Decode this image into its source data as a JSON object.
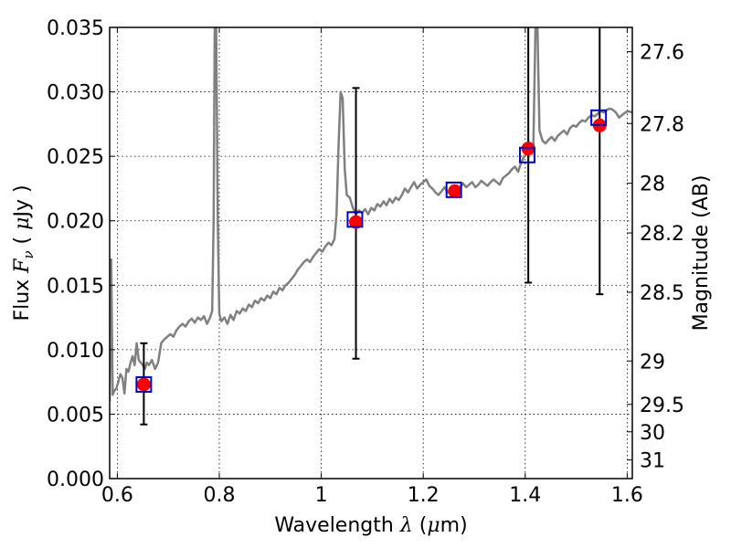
{
  "chart_data": {
    "type": "scatter",
    "xlabel": {
      "prefix": "Wavelength  ",
      "symbol": "λ",
      "mid": " (",
      "unit_symbol": "μ",
      "suffix": "m)"
    },
    "ylabel": {
      "prefix": "Flux  ",
      "symbol": "F",
      "sub": "ν",
      "mid": "  ( ",
      "unit_symbol": "μ",
      "suffix": "Jy )"
    },
    "y2label": "Magnitude (AB)",
    "xlim": [
      0.585,
      1.61
    ],
    "ylim": [
      0.0,
      0.035
    ],
    "x_ticks": [
      {
        "v": 0.6,
        "label": "0.6"
      },
      {
        "v": 0.8,
        "label": "0.8"
      },
      {
        "v": 1.0,
        "label": "1"
      },
      {
        "v": 1.2,
        "label": "1.2"
      },
      {
        "v": 1.4,
        "label": "1.4"
      },
      {
        "v": 1.6,
        "label": "1.6"
      }
    ],
    "y_ticks": [
      {
        "v": 0.0,
        "label": "0.000"
      },
      {
        "v": 0.005,
        "label": "0.005"
      },
      {
        "v": 0.01,
        "label": "0.010"
      },
      {
        "v": 0.015,
        "label": "0.015"
      },
      {
        "v": 0.02,
        "label": "0.020"
      },
      {
        "v": 0.025,
        "label": "0.025"
      },
      {
        "v": 0.03,
        "label": "0.030"
      },
      {
        "v": 0.035,
        "label": "0.035"
      }
    ],
    "magnitude_ticks": [
      {
        "mag": 27.6,
        "label": "27.6"
      },
      {
        "mag": 27.8,
        "label": "27.8"
      },
      {
        "mag": 28.0,
        "label": "28"
      },
      {
        "mag": 28.2,
        "label": "28.2"
      },
      {
        "mag": 28.5,
        "label": "28.5"
      },
      {
        "mag": 29.0,
        "label": "29"
      },
      {
        "mag": 29.5,
        "label": "29.5"
      },
      {
        "mag": 30.0,
        "label": "30"
      },
      {
        "mag": 31.0,
        "label": "31"
      }
    ],
    "grid": true,
    "series": [
      {
        "kind": "spectrum",
        "color": "#808080",
        "points": [
          [
            0.585,
            0.006
          ],
          [
            0.588,
            0.017
          ],
          [
            0.591,
            0.0065
          ],
          [
            0.594,
            0.0068
          ],
          [
            0.598,
            0.007
          ],
          [
            0.602,
            0.0075
          ],
          [
            0.606,
            0.0081
          ],
          [
            0.61,
            0.0078
          ],
          [
            0.614,
            0.0066
          ],
          [
            0.618,
            0.0085
          ],
          [
            0.622,
            0.0083
          ],
          [
            0.626,
            0.009
          ],
          [
            0.63,
            0.0095
          ],
          [
            0.634,
            0.0088
          ],
          [
            0.638,
            0.0105
          ],
          [
            0.642,
            0.0092
          ],
          [
            0.646,
            0.009
          ],
          [
            0.65,
            0.0088
          ],
          [
            0.654,
            0.0085
          ],
          [
            0.658,
            0.009
          ],
          [
            0.662,
            0.0088
          ],
          [
            0.668,
            0.0092
          ],
          [
            0.674,
            0.0085
          ],
          [
            0.68,
            0.009
          ],
          [
            0.686,
            0.0105
          ],
          [
            0.692,
            0.0108
          ],
          [
            0.698,
            0.011
          ],
          [
            0.704,
            0.0112
          ],
          [
            0.71,
            0.011
          ],
          [
            0.716,
            0.0115
          ],
          [
            0.722,
            0.0118
          ],
          [
            0.728,
            0.012
          ],
          [
            0.734,
            0.0118
          ],
          [
            0.74,
            0.0122
          ],
          [
            0.746,
            0.0124
          ],
          [
            0.752,
            0.0121
          ],
          [
            0.758,
            0.0125
          ],
          [
            0.764,
            0.0123
          ],
          [
            0.77,
            0.0126
          ],
          [
            0.776,
            0.012
          ],
          [
            0.782,
            0.0125
          ],
          [
            0.786,
            0.013
          ],
          [
            0.789,
            0.02
          ],
          [
            0.791,
            0.035
          ],
          [
            0.794,
            0.035
          ],
          [
            0.797,
            0.02
          ],
          [
            0.8,
            0.0128
          ],
          [
            0.804,
            0.0122
          ],
          [
            0.81,
            0.0125
          ],
          [
            0.816,
            0.012
          ],
          [
            0.822,
            0.0127
          ],
          [
            0.828,
            0.0123
          ],
          [
            0.834,
            0.013
          ],
          [
            0.84,
            0.0128
          ],
          [
            0.846,
            0.0132
          ],
          [
            0.852,
            0.013
          ],
          [
            0.858,
            0.0135
          ],
          [
            0.864,
            0.0133
          ],
          [
            0.87,
            0.0138
          ],
          [
            0.876,
            0.0136
          ],
          [
            0.882,
            0.014
          ],
          [
            0.888,
            0.0138
          ],
          [
            0.894,
            0.0142
          ],
          [
            0.9,
            0.014
          ],
          [
            0.906,
            0.0145
          ],
          [
            0.912,
            0.0143
          ],
          [
            0.918,
            0.0148
          ],
          [
            0.924,
            0.0146
          ],
          [
            0.93,
            0.015
          ],
          [
            0.936,
            0.0152
          ],
          [
            0.942,
            0.0155
          ],
          [
            0.948,
            0.0158
          ],
          [
            0.954,
            0.0162
          ],
          [
            0.96,
            0.0165
          ],
          [
            0.966,
            0.0168
          ],
          [
            0.972,
            0.017
          ],
          [
            0.978,
            0.0168
          ],
          [
            0.984,
            0.0172
          ],
          [
            0.99,
            0.0175
          ],
          [
            0.996,
            0.0178
          ],
          [
            1.002,
            0.0176
          ],
          [
            1.008,
            0.018
          ],
          [
            1.014,
            0.0183
          ],
          [
            1.02,
            0.0181
          ],
          [
            1.026,
            0.0186
          ],
          [
            1.03,
            0.0205
          ],
          [
            1.034,
            0.026
          ],
          [
            1.038,
            0.03
          ],
          [
            1.042,
            0.0295
          ],
          [
            1.046,
            0.024
          ],
          [
            1.05,
            0.022
          ],
          [
            1.056,
            0.0218
          ],
          [
            1.062,
            0.021
          ],
          [
            1.068,
            0.0205
          ],
          [
            1.074,
            0.0208
          ],
          [
            1.08,
            0.0206
          ],
          [
            1.086,
            0.0209
          ],
          [
            1.092,
            0.0205
          ],
          [
            1.098,
            0.021
          ],
          [
            1.104,
            0.0208
          ],
          [
            1.11,
            0.0213
          ],
          [
            1.116,
            0.0211
          ],
          [
            1.122,
            0.0215
          ],
          [
            1.128,
            0.0212
          ],
          [
            1.134,
            0.0217
          ],
          [
            1.14,
            0.0214
          ],
          [
            1.146,
            0.0218
          ],
          [
            1.152,
            0.0216
          ],
          [
            1.158,
            0.022
          ],
          [
            1.164,
            0.0225
          ],
          [
            1.17,
            0.0222
          ],
          [
            1.176,
            0.0226
          ],
          [
            1.182,
            0.023
          ],
          [
            1.188,
            0.0225
          ],
          [
            1.194,
            0.0228
          ],
          [
            1.2,
            0.023
          ],
          [
            1.206,
            0.0232
          ],
          [
            1.212,
            0.0227
          ],
          [
            1.218,
            0.0225
          ],
          [
            1.224,
            0.0222
          ],
          [
            1.23,
            0.022
          ],
          [
            1.236,
            0.0223
          ],
          [
            1.242,
            0.0226
          ],
          [
            1.248,
            0.0222
          ],
          [
            1.254,
            0.0225
          ],
          [
            1.26,
            0.0227
          ],
          [
            1.266,
            0.0224
          ],
          [
            1.272,
            0.0226
          ],
          [
            1.278,
            0.0229
          ],
          [
            1.284,
            0.0226
          ],
          [
            1.29,
            0.0228
          ],
          [
            1.296,
            0.023
          ],
          [
            1.302,
            0.0226
          ],
          [
            1.308,
            0.0228
          ],
          [
            1.314,
            0.0231
          ],
          [
            1.32,
            0.0229
          ],
          [
            1.326,
            0.0227
          ],
          [
            1.332,
            0.023
          ],
          [
            1.338,
            0.0232
          ],
          [
            1.344,
            0.023
          ],
          [
            1.35,
            0.0228
          ],
          [
            1.356,
            0.0233
          ],
          [
            1.362,
            0.0235
          ],
          [
            1.368,
            0.0237
          ],
          [
            1.374,
            0.024
          ],
          [
            1.38,
            0.0242
          ],
          [
            1.386,
            0.0238
          ],
          [
            1.392,
            0.0245
          ],
          [
            1.398,
            0.025
          ],
          [
            1.404,
            0.0252
          ],
          [
            1.41,
            0.0255
          ],
          [
            1.416,
            0.0258
          ],
          [
            1.42,
            0.035
          ],
          [
            1.424,
            0.035
          ],
          [
            1.428,
            0.027
          ],
          [
            1.434,
            0.0262
          ],
          [
            1.44,
            0.026
          ],
          [
            1.446,
            0.0263
          ],
          [
            1.452,
            0.0265
          ],
          [
            1.458,
            0.0262
          ],
          [
            1.464,
            0.0266
          ],
          [
            1.47,
            0.0268
          ],
          [
            1.476,
            0.027
          ],
          [
            1.482,
            0.0267
          ],
          [
            1.488,
            0.0272
          ],
          [
            1.494,
            0.0274
          ],
          [
            1.5,
            0.0273
          ],
          [
            1.506,
            0.0276
          ],
          [
            1.512,
            0.0278
          ],
          [
            1.518,
            0.0277
          ],
          [
            1.524,
            0.028
          ],
          [
            1.53,
            0.0282
          ],
          [
            1.536,
            0.0281
          ],
          [
            1.542,
            0.0283
          ],
          [
            1.548,
            0.0285
          ],
          [
            1.554,
            0.0284
          ],
          [
            1.56,
            0.0286
          ],
          [
            1.566,
            0.0287
          ],
          [
            1.572,
            0.0286
          ],
          [
            1.578,
            0.0284
          ],
          [
            1.584,
            0.028
          ],
          [
            1.59,
            0.0282
          ],
          [
            1.596,
            0.0284
          ],
          [
            1.602,
            0.0285
          ],
          [
            1.61,
            0.0284
          ]
        ]
      },
      {
        "kind": "observed_points",
        "color": "#ff0000",
        "points": [
          {
            "x": 0.652,
            "y": 0.0073,
            "yerr_low": 0.0042,
            "yerr_high": 0.0105
          },
          {
            "x": 1.068,
            "y": 0.0199,
            "yerr_low": 0.0093,
            "yerr_high": 0.0303
          },
          {
            "x": 1.262,
            "y": 0.0223,
            "yerr_low": null,
            "yerr_high": null
          },
          {
            "x": 1.406,
            "y": 0.0256,
            "yerr_low": 0.0152,
            "yerr_high": 0.035
          },
          {
            "x": 1.546,
            "y": 0.0274,
            "yerr_low": 0.0143,
            "yerr_high": 0.035
          }
        ]
      },
      {
        "kind": "model_points",
        "color": "#0000cc",
        "points": [
          {
            "x": 0.652,
            "y": 0.0073
          },
          {
            "x": 1.066,
            "y": 0.0201
          },
          {
            "x": 1.26,
            "y": 0.0224
          },
          {
            "x": 1.404,
            "y": 0.0251
          },
          {
            "x": 1.544,
            "y": 0.028
          }
        ]
      }
    ]
  }
}
